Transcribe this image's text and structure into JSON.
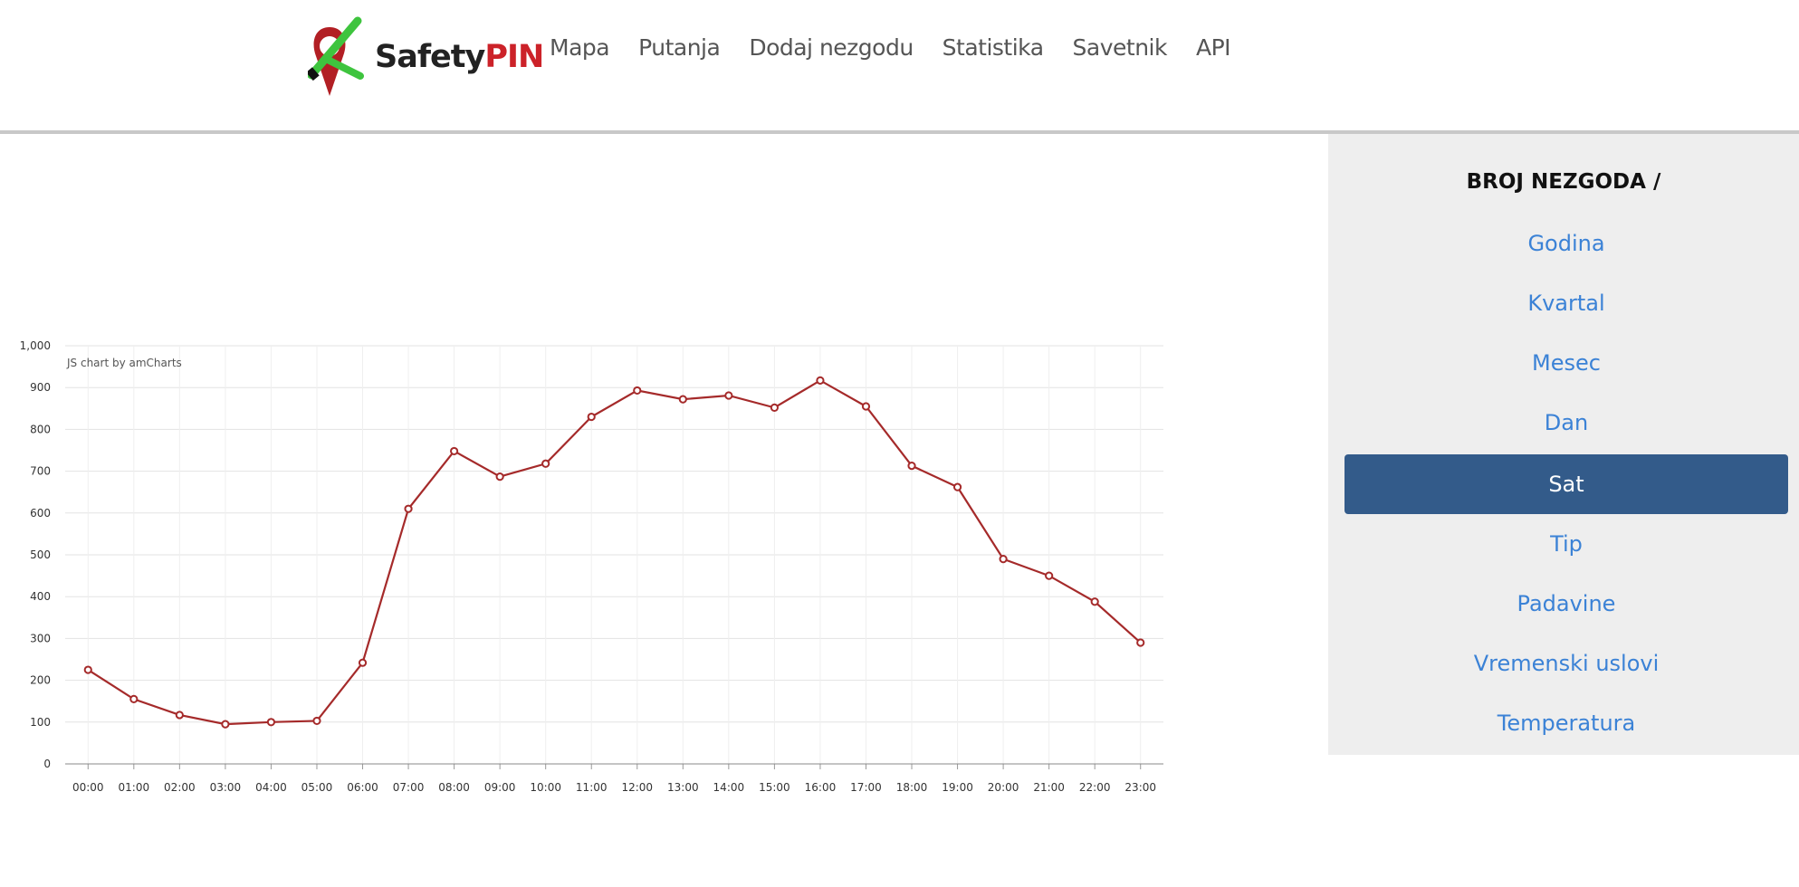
{
  "logo": {
    "text_a": "Safety",
    "text_b": "PIN"
  },
  "nav": [
    "Mapa",
    "Putanja",
    "Dodaj nezgodu",
    "Statistika",
    "Savetnik",
    "API"
  ],
  "sidebar": {
    "title": "BROJ NEZGODA /",
    "items": [
      {
        "label": "Godina",
        "active": false
      },
      {
        "label": "Kvartal",
        "active": false
      },
      {
        "label": "Mesec",
        "active": false
      },
      {
        "label": "Dan",
        "active": false
      },
      {
        "label": "Sat",
        "active": true
      },
      {
        "label": "Tip",
        "active": false
      },
      {
        "label": "Padavine",
        "active": false
      },
      {
        "label": "Vremenski uslovi",
        "active": false
      },
      {
        "label": "Temperatura",
        "active": false
      }
    ]
  },
  "colors": {
    "line": "#a52a2a",
    "accent": "#335b8a",
    "link": "#3b82d6"
  },
  "chart_data": {
    "type": "line",
    "credit": "JS chart by amCharts",
    "categories": [
      "00:00",
      "01:00",
      "02:00",
      "03:00",
      "04:00",
      "05:00",
      "06:00",
      "07:00",
      "08:00",
      "09:00",
      "10:00",
      "11:00",
      "12:00",
      "13:00",
      "14:00",
      "15:00",
      "16:00",
      "17:00",
      "18:00",
      "19:00",
      "20:00",
      "21:00",
      "22:00",
      "23:00"
    ],
    "series": [
      {
        "values": [
          225,
          155,
          117,
          95,
          100,
          103,
          242,
          610,
          748,
          687,
          718,
          830,
          893,
          872,
          881,
          852,
          917,
          855,
          713,
          662,
          490,
          450,
          388,
          290
        ]
      }
    ],
    "ylim": [
      0,
      1000
    ],
    "yticks": [
      "0",
      "100",
      "200",
      "300",
      "400",
      "500",
      "600",
      "700",
      "800",
      "900",
      "1,000"
    ],
    "grid": true
  }
}
